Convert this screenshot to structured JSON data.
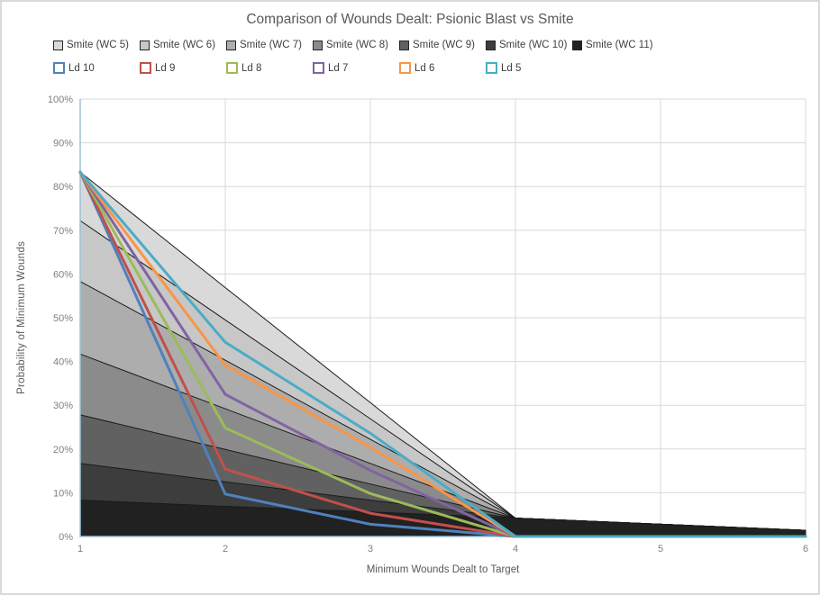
{
  "title": "Comparison of Wounds Dealt: Psionic Blast vs Smite",
  "chart_data": {
    "type": "area+line",
    "title": "Comparison of Wounds Dealt: Psionic Blast vs Smite",
    "xlabel": "Minimum Wounds Dealt to Target",
    "ylabel": "Probability of Minimum  Wounds",
    "x": [
      1,
      2,
      3,
      4,
      5,
      6
    ],
    "x_tick_labels": [
      "1",
      "2",
      "3",
      "4",
      "5",
      "6"
    ],
    "ylim": [
      0,
      100
    ],
    "y_tick_labels": [
      "0%",
      "10%",
      "20%",
      "30%",
      "40%",
      "50%",
      "60%",
      "70%",
      "80%",
      "90%",
      "100%"
    ],
    "grid": true,
    "legend_position": "top-two-rows",
    "style": {
      "gridline_color": "#D9D9D9",
      "axis_line_color": "#9CC3D5",
      "area_border_color": "#1A1A1A",
      "frame_border_color": "#D9D9D9",
      "title_color": "#595959",
      "tick_color": "#7F7F7F",
      "legend_text_color": "#404040"
    },
    "area_series": [
      {
        "name": "Smite (WC 5)",
        "fill": "#D9D9D9",
        "values": [
          83.3,
          56.9,
          30.6,
          4.2,
          2.8,
          1.4
        ]
      },
      {
        "name": "Smite (WC 6)",
        "fill": "#C7C7C7",
        "values": [
          72.2,
          49.5,
          26.9,
          4.2,
          2.8,
          1.4
        ]
      },
      {
        "name": "Smite (WC 7)",
        "fill": "#ADADAD",
        "values": [
          58.3,
          40.3,
          22.2,
          4.2,
          2.8,
          1.4
        ]
      },
      {
        "name": "Smite (WC 8)",
        "fill": "#8B8B8B",
        "values": [
          41.7,
          29.2,
          16.7,
          4.2,
          2.8,
          1.4
        ]
      },
      {
        "name": "Smite (WC 9)",
        "fill": "#616161",
        "values": [
          27.8,
          19.9,
          12.0,
          4.2,
          2.8,
          1.4
        ]
      },
      {
        "name": "Smite (WC 10)",
        "fill": "#3D3D3D",
        "values": [
          16.7,
          12.5,
          8.3,
          4.2,
          2.8,
          1.4
        ]
      },
      {
        "name": "Smite (WC 11)",
        "fill": "#212121",
        "values": [
          8.3,
          6.9,
          5.6,
          4.2,
          2.8,
          1.4
        ]
      }
    ],
    "line_series": [
      {
        "name": "Ld 10",
        "color": "#4F81BD",
        "values": [
          83.3,
          9.7,
          2.8,
          0,
          0,
          0
        ]
      },
      {
        "name": "Ld 9",
        "color": "#C0504D",
        "values": [
          83.3,
          15.4,
          5.3,
          0,
          0,
          0
        ]
      },
      {
        "name": "Ld 8",
        "color": "#9BBB59",
        "values": [
          83.3,
          24.8,
          9.8,
          0,
          0,
          0
        ]
      },
      {
        "name": "Ld 7",
        "color": "#8064A2",
        "values": [
          83.3,
          32.5,
          15.1,
          0,
          0,
          0
        ]
      },
      {
        "name": "Ld 6",
        "color": "#F79646",
        "values": [
          83.3,
          39.2,
          20.4,
          0,
          0,
          0
        ]
      },
      {
        "name": "Ld 5",
        "color": "#4BACC6",
        "values": [
          83.3,
          44.4,
          23.6,
          0,
          0,
          0
        ]
      }
    ]
  }
}
